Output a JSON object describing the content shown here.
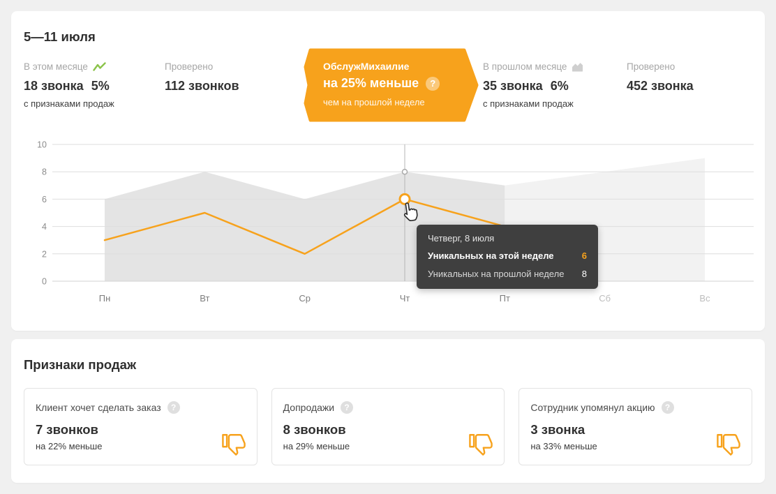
{
  "page": {
    "background": "#f0f0f0",
    "accent": "#f7a21c"
  },
  "period": {
    "title": "5—11 июля"
  },
  "stats": {
    "this_month": {
      "label": "В этом месяце",
      "icon": "trend-up-icon",
      "value": "18 звонка",
      "percent": "5%",
      "sub": "с признаками продаж"
    },
    "checked_month": {
      "label": "Проверено",
      "value": "112 звонков"
    },
    "last_month": {
      "label": "В прошлом месяце",
      "icon": "area-chart-icon",
      "value": "35 звонка",
      "percent": "6%",
      "sub": "с признаками продаж"
    },
    "checked_last_month": {
      "label": "Проверено",
      "value": "452 звонка"
    }
  },
  "badge": {
    "title": "ОбслужМихаилие",
    "value": "на 25% меньше",
    "sub": "чем на прошлой неделе",
    "help_glyph": "?"
  },
  "chart_data": {
    "type": "line+area",
    "categories": [
      "Пн",
      "Вт",
      "Ср",
      "Чт",
      "Пт",
      "Сб",
      "Вс"
    ],
    "x_future_from_index": 5,
    "ylim": [
      0,
      10
    ],
    "yticks": [
      0,
      2,
      4,
      6,
      8,
      10
    ],
    "grid": true,
    "legend": "none",
    "series": [
      {
        "name": "Уникальных на этой неделе",
        "type": "line",
        "color": "#f7a21c",
        "values": [
          3,
          5,
          2,
          6,
          4,
          null,
          null
        ]
      },
      {
        "name": "Уникальных на прошлой неделе",
        "type": "area",
        "color": "#e4e4e4",
        "values": [
          6,
          8,
          6,
          8,
          7,
          null,
          null
        ]
      },
      {
        "name": "Уникальных на прошлой неделе",
        "type": "area",
        "color": "#f2f2f2",
        "values": [
          null,
          null,
          null,
          null,
          7,
          8,
          9
        ]
      }
    ],
    "highlight": {
      "index": 3,
      "line_value": 6,
      "area_value": 8
    }
  },
  "tooltip": {
    "title": "Четверг, 8 июля",
    "rows": [
      {
        "label": "Уникальных на этой неделе",
        "value": "6"
      },
      {
        "label": "Уникальных на прошлой неделе",
        "value": "8"
      }
    ]
  },
  "signs": {
    "title": "Признаки продаж",
    "help_glyph": "?",
    "cards": [
      {
        "title": "Клиент хочет сделать заказ",
        "value": "7 звонков",
        "sub": "на 22% меньше"
      },
      {
        "title": "Допродажи",
        "value": "8 звонков",
        "sub": "на 29% меньше"
      },
      {
        "title": "Сотрудник упомянул акцию",
        "value": "3 звонка",
        "sub": "на 33% меньше"
      }
    ]
  }
}
